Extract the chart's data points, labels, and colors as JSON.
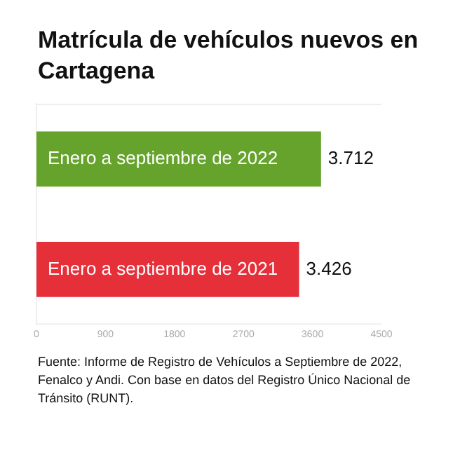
{
  "chart_data": {
    "type": "bar",
    "orientation": "horizontal",
    "title": "Matrícula de vehículos nuevos en Cartagena",
    "categories": [
      "Enero a septiembre de 2022",
      "Enero a septiembre de 2021"
    ],
    "values": [
      3712,
      3426
    ],
    "colors": [
      "#65a32c",
      "#e5303a"
    ],
    "value_labels": [
      "3.712",
      "3.426"
    ],
    "xlim": [
      0,
      4500
    ],
    "xticks": [
      0,
      900,
      1800,
      2700,
      3600,
      4500
    ],
    "grid": false,
    "legend": false,
    "annotations": [
      "Fuente: Informe de Registro de Vehículos a Septiembre de 2022, Fenalco y Andi. Con base en datos del Registro Único Nacional de Tránsito (RUNT)."
    ]
  }
}
